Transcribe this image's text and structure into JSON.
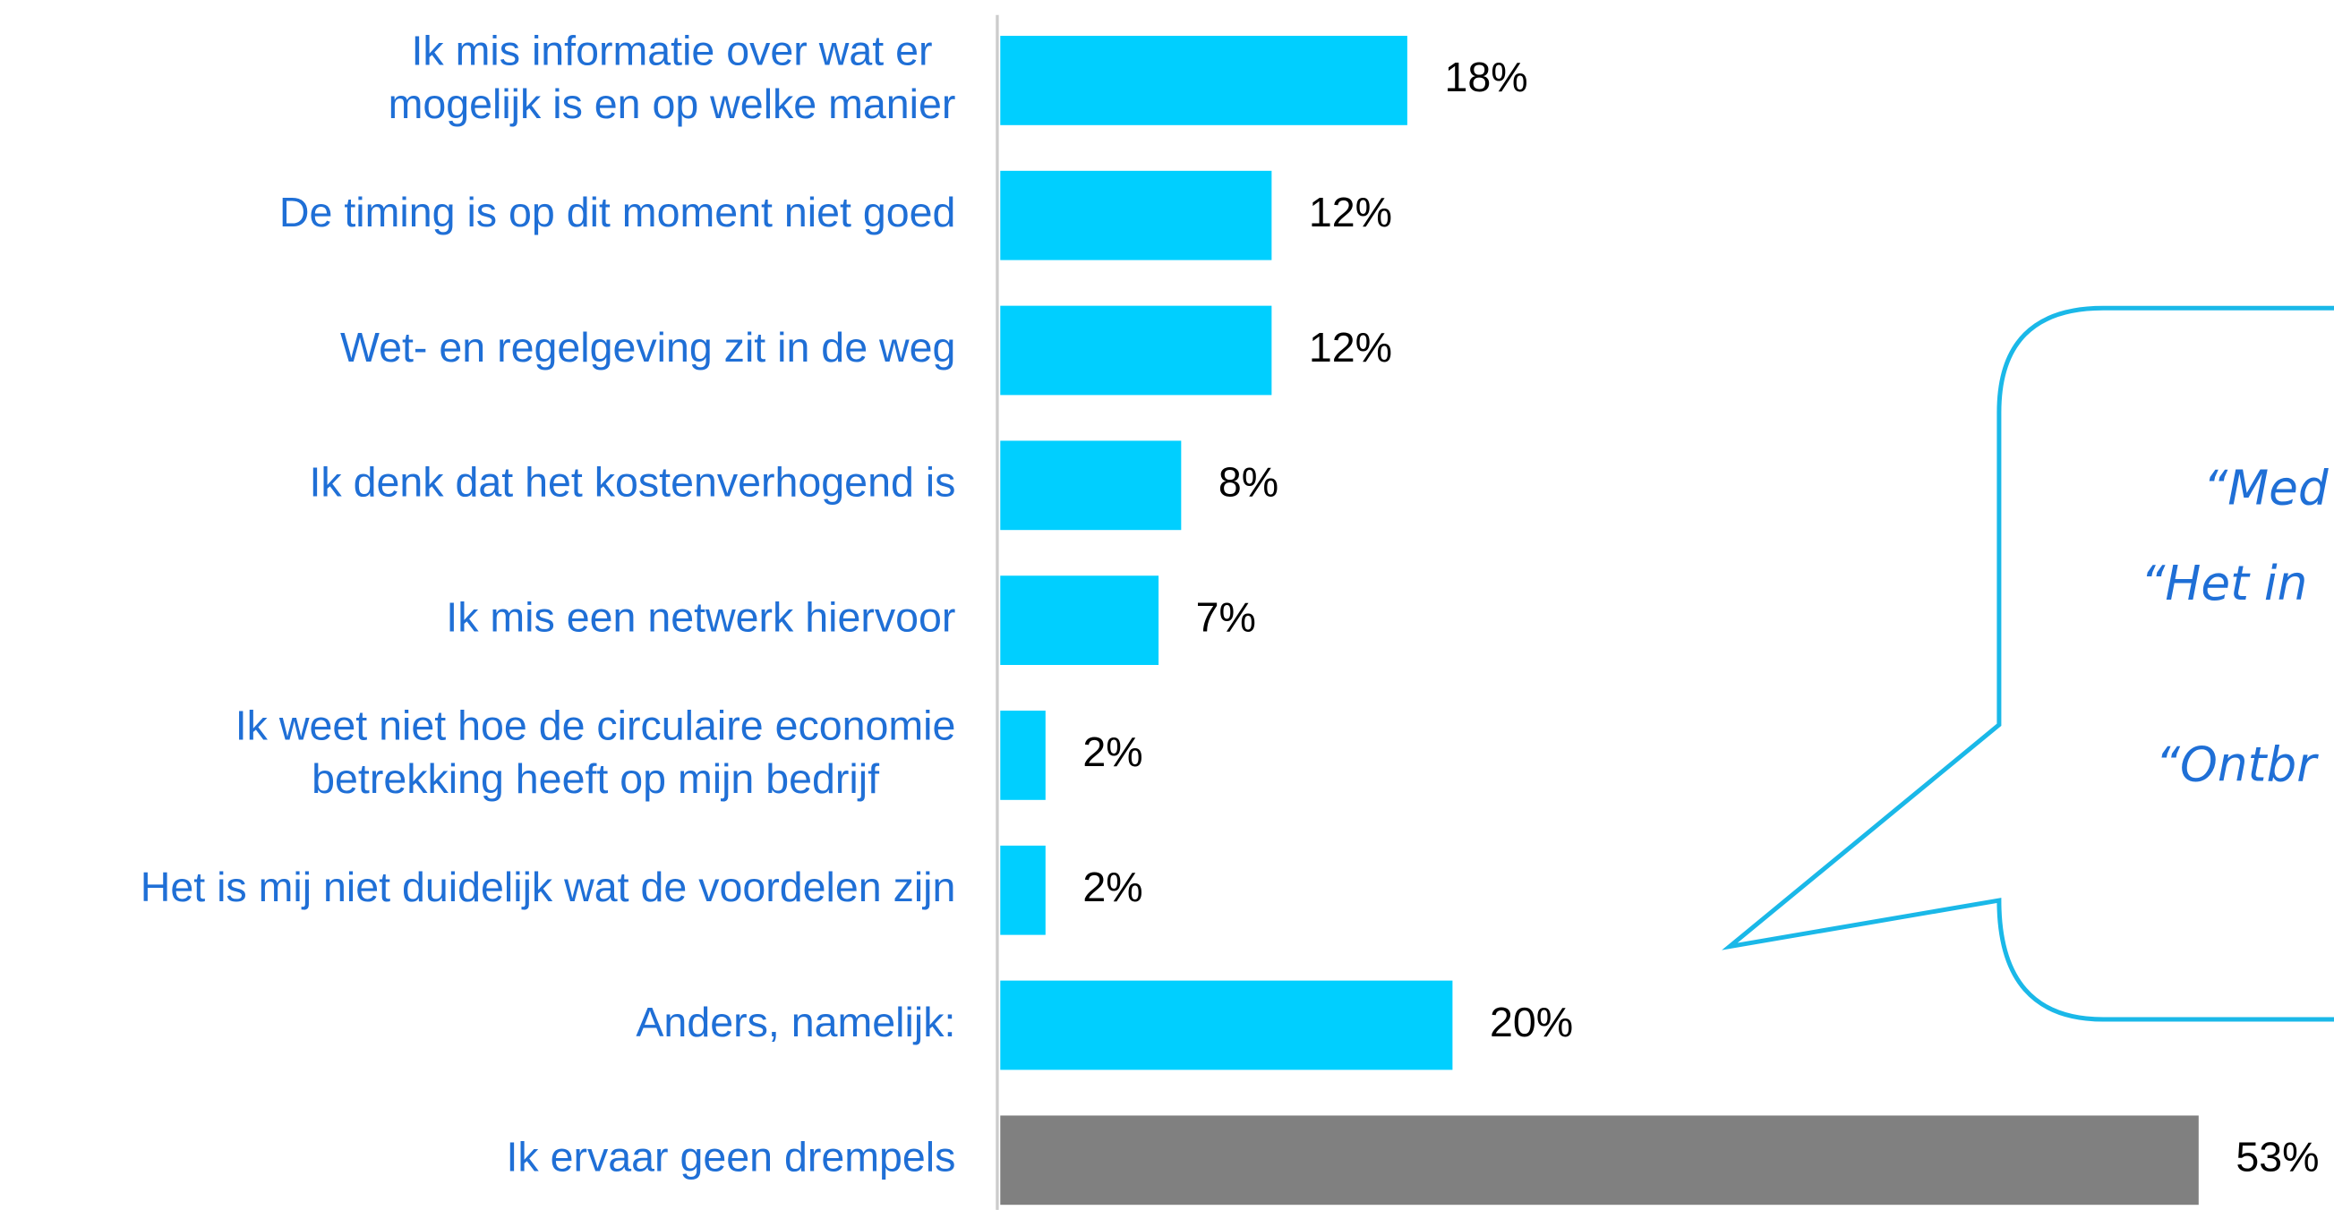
{
  "chart_data": {
    "type": "bar",
    "orientation": "horizontal",
    "categories": [
      [
        "Ik mis informatie over wat er",
        "mogelijk is en op welke manier"
      ],
      [
        "De timing is op dit moment niet goed"
      ],
      [
        "Wet- en regelgeving zit in de weg"
      ],
      [
        "Ik denk dat het kostenverhogend is"
      ],
      [
        "Ik mis een netwerk hiervoor"
      ],
      [
        "Ik weet niet hoe de circulaire economie",
        "betrekking heeft op mijn bedrijf"
      ],
      [
        "Het is mij niet duidelijk wat de voordelen zijn"
      ],
      [
        "Anders, namelijk:"
      ],
      [
        "Ik ervaar geen drempels"
      ]
    ],
    "values": [
      18,
      12,
      12,
      8,
      7,
      2,
      2,
      20,
      53
    ],
    "value_labels": [
      "18%",
      "12%",
      "12%",
      "8%",
      "7%",
      "2%",
      "2%",
      "20%",
      "53%"
    ],
    "colors": [
      "#00cfff",
      "#00cfff",
      "#00cfff",
      "#00cfff",
      "#00cfff",
      "#00cfff",
      "#00cfff",
      "#00cfff",
      "#808080"
    ],
    "xlim": [
      0,
      60
    ],
    "annotations": [
      "“Med",
      "“Het in",
      "“Ontbr"
    ]
  }
}
